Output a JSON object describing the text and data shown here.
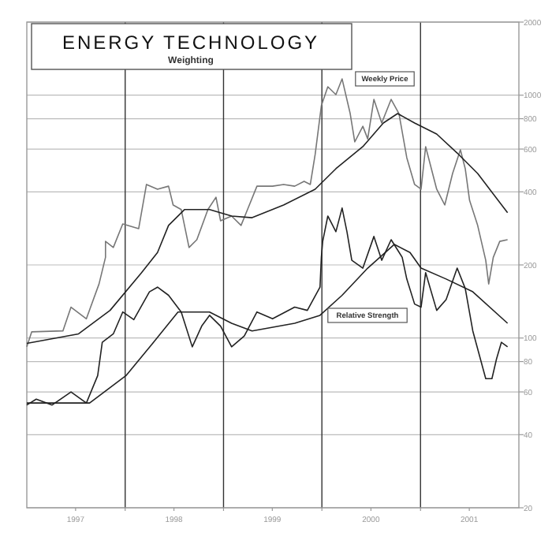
{
  "chart_data": {
    "type": "line",
    "title": "ENERGY TECHNOLOGY",
    "subtitle": "Weighting",
    "annotations": [
      "Weekly Price",
      "Relative Strength"
    ],
    "log": "y",
    "grid": true,
    "line_style": "solid",
    "xlim": [
      "1997-01-01",
      "2002-01-01"
    ],
    "xticks": [
      {
        "value": "1997-07-01",
        "label": "1997"
      },
      {
        "value": "1998-01-01",
        "label": null
      },
      {
        "value": "1998-07-01",
        "label": "1998"
      },
      {
        "value": "1999-01-01",
        "label": null
      },
      {
        "value": "1999-07-01",
        "label": "1999"
      },
      {
        "value": "2000-01-01",
        "label": null
      },
      {
        "value": "2000-07-01",
        "label": "2000"
      },
      {
        "value": "2001-01-01",
        "label": null
      },
      {
        "value": "2001-07-01",
        "label": "2001"
      }
    ],
    "ylim": [
      20,
      2000
    ],
    "yticks": [
      20,
      40,
      60,
      80,
      100,
      200,
      400,
      600,
      800,
      1000,
      2000
    ],
    "series": [
      {
        "color": "#777777",
        "x": [
          "1997-01-01",
          "1997-01-19",
          "1997-05-15",
          "1997-06-14",
          "1997-08-10",
          "1997-09-26",
          "1997-10-20",
          "1997-10-20",
          "1997-11-18",
          "1997-12-23",
          "1998-02-20",
          "1998-03-21",
          "1998-05-01",
          "1998-06-11",
          "1998-06-28",
          "1998-07-28",
          "1998-08-26",
          "1998-09-24",
          "1998-11-04",
          "1998-12-04",
          "1998-12-21",
          "1999-01-31",
          "1999-03-07",
          "1999-03-31",
          "1999-05-05",
          "1999-07-02",
          "1999-08-12",
          "1999-09-22",
          "1999-10-27",
          "1999-11-19",
          "1999-12-07",
          "1999-12-30",
          "2000-01-23",
          "2000-02-22",
          "2000-03-16",
          "2000-04-15",
          "2000-05-02",
          "2000-06-01",
          "2000-06-19",
          "2000-07-12",
          "2000-08-10",
          "2000-09-14",
          "2000-10-13",
          "2000-11-11",
          "2000-12-10",
          "2001-01-03",
          "2001-01-20",
          "2001-03-02",
          "2001-04-01",
          "2001-04-30",
          "2001-05-29",
          "2001-06-16",
          "2001-07-02",
          "2001-08-01",
          "2001-08-31",
          "2001-09-11",
          "2001-09-28",
          "2001-10-22",
          "2001-11-20"
        ],
        "values": [
          92,
          106,
          107,
          134,
          120,
          167,
          215,
          250,
          236,
          295,
          282,
          429,
          410,
          422,
          353,
          338,
          236,
          254,
          338,
          380,
          304,
          318,
          291,
          338,
          422,
          422,
          429,
          422,
          442,
          429,
          570,
          905,
          1083,
          1005,
          1167,
          840,
          642,
          745,
          661,
          961,
          768,
          961,
          840,
          553,
          429,
          410,
          614,
          410,
          353,
          476,
          596,
          498,
          369,
          291,
          209,
          167,
          215,
          250,
          254
        ]
      },
      {
        "color": "#222222",
        "x": [
          "1997-01-01",
          "1997-07-12",
          "1997-11-06",
          "1998-03-03",
          "1998-05-01",
          "1998-06-11",
          "1998-08-09",
          "1998-11-10",
          "1999-01-31",
          "1999-04-17",
          "1999-08-12",
          "1999-12-07",
          "2000-02-22",
          "2000-06-01",
          "2000-08-16",
          "2000-10-08",
          "2000-12-10",
          "2001-03-02",
          "2001-05-17",
          "2001-08-01",
          "2001-11-20"
        ],
        "values": [
          95,
          104,
          130,
          186,
          225,
          291,
          338,
          338,
          318,
          313,
          353,
          410,
          498,
          614,
          768,
          840,
          768,
          692,
          578,
          476,
          328
        ]
      },
      {
        "color": "#222222",
        "x": [
          "1997-01-01",
          "1997-02-05",
          "1997-04-05",
          "1997-06-14",
          "1997-08-10",
          "1997-09-21",
          "1997-10-08",
          "1997-11-18",
          "1997-12-23",
          "1998-02-02",
          "1998-04-01",
          "1998-05-01",
          "1998-06-11",
          "1998-07-28",
          "1998-09-07",
          "1998-10-12",
          "1998-11-10",
          "1998-12-21",
          "1999-01-31",
          "1999-03-19",
          "1999-05-05",
          "1999-07-02",
          "1999-09-22",
          "1999-11-08",
          "1999-12-25",
          "1999-12-30",
          "2000-01-04",
          "2000-01-23",
          "2000-02-22",
          "2000-03-16",
          "2000-04-03",
          "2000-04-21",
          "2000-06-01",
          "2000-07-12",
          "2000-08-10",
          "2000-09-14",
          "2000-10-25",
          "2000-11-11",
          "2000-12-10",
          "2001-01-03",
          "2001-01-20",
          "2001-03-02",
          "2001-04-06",
          "2001-05-17",
          "2001-06-16",
          "2001-07-14",
          "2001-08-31",
          "2001-09-23",
          "2001-10-10",
          "2001-10-28",
          "2001-11-20"
        ],
        "values": [
          53,
          56,
          53,
          60,
          54,
          70,
          96,
          104,
          128,
          119,
          155,
          162,
          150,
          128,
          92,
          112,
          124,
          112,
          92,
          102,
          128,
          120,
          134,
          130,
          162,
          215,
          250,
          318,
          274,
          343,
          274,
          209,
          194,
          262,
          209,
          254,
          215,
          175,
          138,
          134,
          186,
          130,
          144,
          194,
          160,
          107,
          68,
          68,
          82,
          96,
          92
        ]
      },
      {
        "color": "#222222",
        "x": [
          "1997-01-01",
          "1997-08-22",
          "1998-01-04",
          "1998-04-13",
          "1998-07-16",
          "1998-11-10",
          "1999-01-31",
          "1999-04-17",
          "1999-09-22",
          "1999-12-25",
          "2000-03-16",
          "2000-06-19",
          "2000-09-26",
          "2000-11-23",
          "2001-01-03",
          "2001-04-06",
          "2001-07-14",
          "2001-11-20"
        ],
        "values": [
          54,
          54,
          70,
          95,
          128,
          128,
          115,
          107,
          115,
          124,
          150,
          194,
          243,
          225,
          194,
          175,
          155,
          115
        ]
      }
    ]
  }
}
